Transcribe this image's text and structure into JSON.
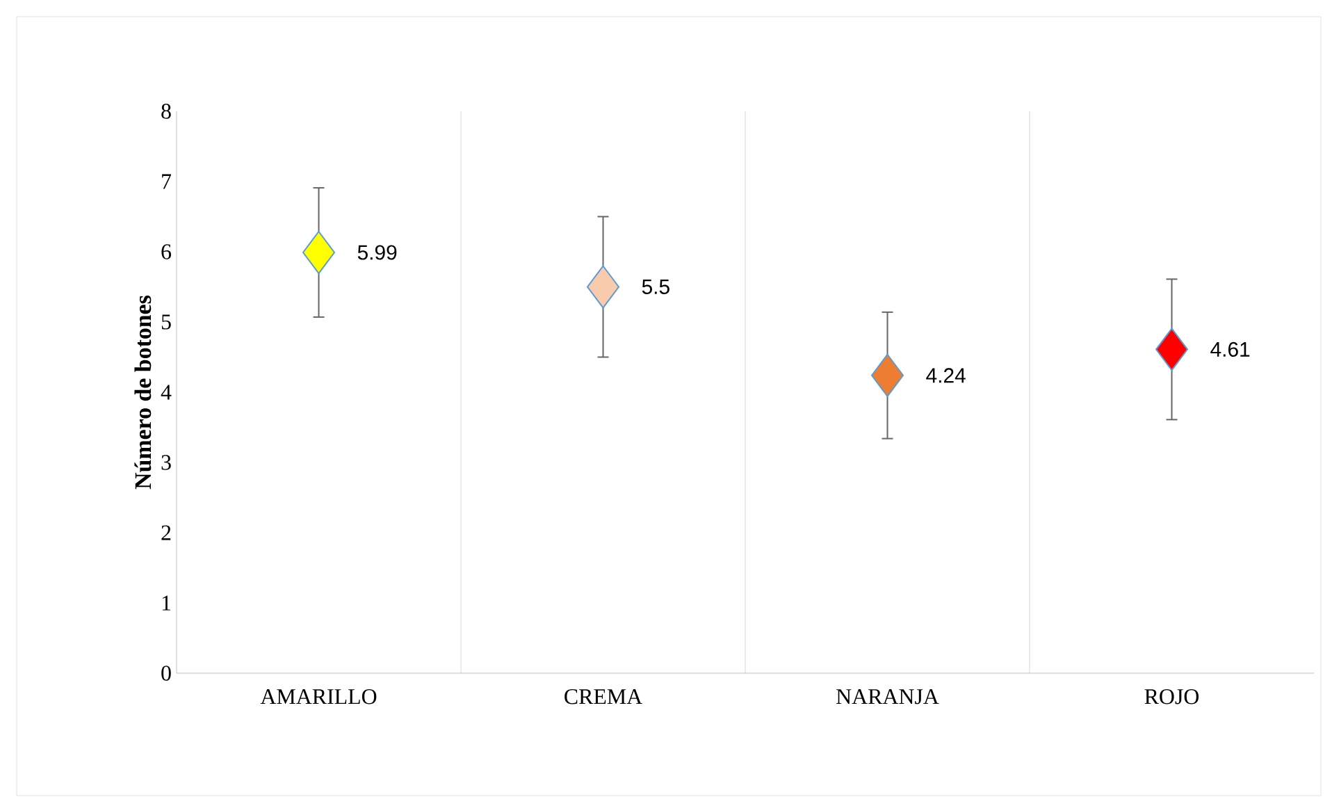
{
  "chart_data": {
    "type": "scatter",
    "ylabel": "Número de botones",
    "categories": [
      "AMARILLO",
      "CREMA",
      "NARANJA",
      "ROJO"
    ],
    "values": [
      5.99,
      5.5,
      4.24,
      4.61
    ],
    "errors": [
      0.92,
      1.0,
      0.9,
      1.0
    ],
    "colors": [
      "#ffff00",
      "#f8cbad",
      "#ed7d31",
      "#ff0000"
    ],
    "marker": "diamond",
    "data_labels": true,
    "grid": "x",
    "ylim": [
      0,
      8
    ],
    "yticks": [
      0,
      1,
      2,
      3,
      4,
      5,
      6,
      7,
      8
    ]
  }
}
